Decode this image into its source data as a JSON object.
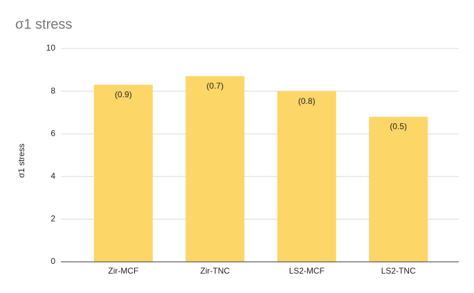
{
  "chart_data": {
    "type": "bar",
    "title": "σ1 stress",
    "y_label": "σ1 stress",
    "categories": [
      "Zir-MCF",
      "Zir-TNC",
      "LS2-MCF",
      "LS2-TNC"
    ],
    "values": [
      8.3,
      8.7,
      8.0,
      6.8
    ],
    "bar_labels": [
      "(0.9)",
      "(0.7)",
      "(0.8)",
      "(0.5)"
    ],
    "color": "#fdd668",
    "ylim": [
      0,
      10
    ],
    "yticks": [
      0,
      2,
      4,
      6,
      8,
      10
    ],
    "grid": true
  }
}
